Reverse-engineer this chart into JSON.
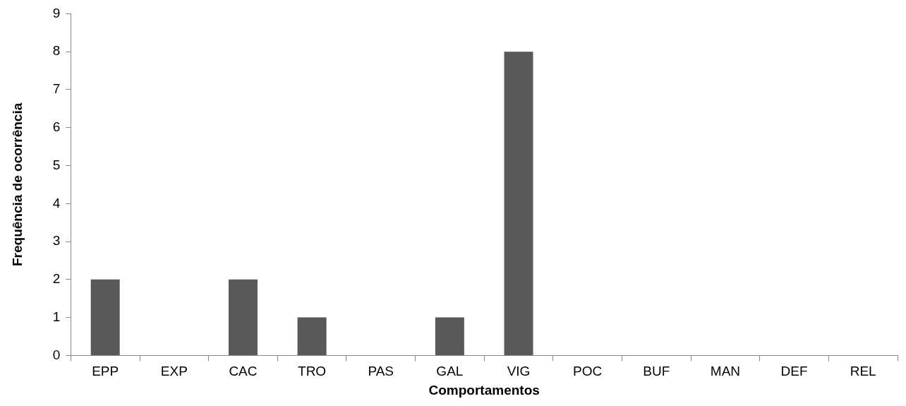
{
  "chart_data": {
    "type": "bar",
    "xlabel": "Comportamentos",
    "ylabel": "Frequência de ocorrência",
    "categories": [
      "EPP",
      "EXP",
      "CAC",
      "TRO",
      "PAS",
      "GAL",
      "VIG",
      "POC",
      "BUF",
      "MAN",
      "DEF",
      "REL"
    ],
    "values": [
      2,
      0,
      2,
      1,
      0,
      1,
      8,
      0,
      0,
      0,
      0,
      0
    ],
    "color": "#595959",
    "ylim": [
      0,
      9
    ],
    "yticks": [
      0,
      1,
      2,
      3,
      4,
      5,
      6,
      7,
      8,
      9
    ]
  }
}
